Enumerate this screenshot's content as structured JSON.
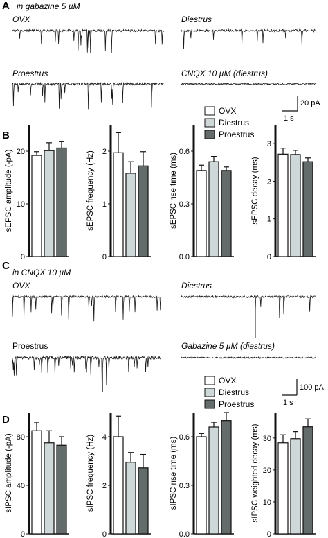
{
  "figure": {
    "panel_letters": [
      "A",
      "B",
      "C",
      "D"
    ],
    "section_A_condition": "in gabazine 5 µM",
    "section_C_condition": "in CNQX 10 µM",
    "traces_A": [
      {
        "label": "OVX",
        "italic": true
      },
      {
        "label": "Diestrus",
        "italic": true
      },
      {
        "label": "Proestrus",
        "italic": true
      },
      {
        "label": "CNQX 10 µM (diestrus)",
        "italic": true
      }
    ],
    "traces_C": [
      {
        "label": "OVX",
        "italic": true
      },
      {
        "label": "Diestrus",
        "italic": true
      },
      {
        "label": "Proestrus",
        "italic": false
      },
      {
        "label": "Gabazine 5 µM (diestrus)",
        "italic": true
      }
    ],
    "scalebar_A": {
      "amplitude": "20 pA",
      "time": "1 s"
    },
    "scalebar_C": {
      "amplitude": "100 pA",
      "time": "1 s"
    },
    "legend": [
      {
        "name": "OVX",
        "color": "#ffffff"
      },
      {
        "name": "Diestrus",
        "color": "#cfd8d8"
      },
      {
        "name": "Proestrus",
        "color": "#636b6b"
      }
    ]
  },
  "chart_data": [
    {
      "panel": "B",
      "type": "bar",
      "ylabel": "sEPSC amplitude (-pA)",
      "yticks": [
        0,
        10,
        20
      ],
      "ylim": [
        0,
        25
      ],
      "categories": [
        "OVX",
        "Diestrus",
        "Proestrus"
      ],
      "values": [
        19.2,
        20.1,
        20.6
      ],
      "errors": [
        0.7,
        1.5,
        1.2
      ]
    },
    {
      "panel": "B",
      "type": "bar",
      "ylabel": "sEPSC frequency (Hz)",
      "yticks": [
        0,
        1,
        2
      ],
      "ylim": [
        0,
        2.5
      ],
      "categories": [
        "OVX",
        "Diestrus",
        "Proestrus"
      ],
      "values": [
        1.97,
        1.58,
        1.72
      ],
      "errors": [
        0.38,
        0.22,
        0.27
      ]
    },
    {
      "panel": "B",
      "type": "bar",
      "ylabel": "sEPSC rise time (ms)",
      "yticks": [
        0.0,
        0.3,
        0.6
      ],
      "ylim": [
        0,
        0.75
      ],
      "categories": [
        "OVX",
        "Diestrus",
        "Proestrus"
      ],
      "values": [
        0.49,
        0.54,
        0.49
      ],
      "errors": [
        0.03,
        0.03,
        0.02
      ]
    },
    {
      "panel": "B",
      "type": "bar",
      "ylabel": "sEPSC decay (ms)",
      "yticks": [
        0,
        1,
        2,
        3
      ],
      "ylim": [
        0,
        3.5
      ],
      "categories": [
        "OVX",
        "Diestrus",
        "Proestrus"
      ],
      "values": [
        2.72,
        2.71,
        2.52
      ],
      "errors": [
        0.16,
        0.11,
        0.1
      ]
    },
    {
      "panel": "D",
      "type": "bar",
      "ylabel": "sIPSC amplitude (-pA)",
      "yticks": [
        0,
        40,
        80
      ],
      "ylim": [
        0,
        100
      ],
      "categories": [
        "OVX",
        "Diestrus",
        "Proestrus"
      ],
      "values": [
        85,
        75,
        73
      ],
      "errors": [
        7,
        10,
        7
      ]
    },
    {
      "panel": "D",
      "type": "bar",
      "ylabel": "sIPSC frequency (Hz)",
      "yticks": [
        0,
        2,
        4
      ],
      "ylim": [
        0,
        5
      ],
      "categories": [
        "OVX",
        "Diestrus",
        "Proestrus"
      ],
      "values": [
        4.0,
        2.95,
        2.72
      ],
      "errors": [
        0.85,
        0.4,
        0.55
      ]
    },
    {
      "panel": "D",
      "type": "bar",
      "ylabel": "sIPSC rise time (ms)",
      "yticks": [
        0.0,
        0.3,
        0.6
      ],
      "ylim": [
        0,
        0.75
      ],
      "categories": [
        "OVX",
        "Diestrus",
        "Proestrus"
      ],
      "values": [
        0.6,
        0.66,
        0.7
      ],
      "errors": [
        0.02,
        0.03,
        0.05
      ]
    },
    {
      "panel": "D",
      "type": "bar",
      "ylabel": "sIPSC weighted decay (ms)",
      "yticks": [
        0,
        10,
        20,
        30
      ],
      "ylim": [
        0,
        38
      ],
      "categories": [
        "OVX",
        "Diestrus",
        "Proestrus"
      ],
      "values": [
        28.5,
        29.8,
        33.5
      ],
      "errors": [
        2.5,
        2.2,
        2.5
      ]
    }
  ]
}
